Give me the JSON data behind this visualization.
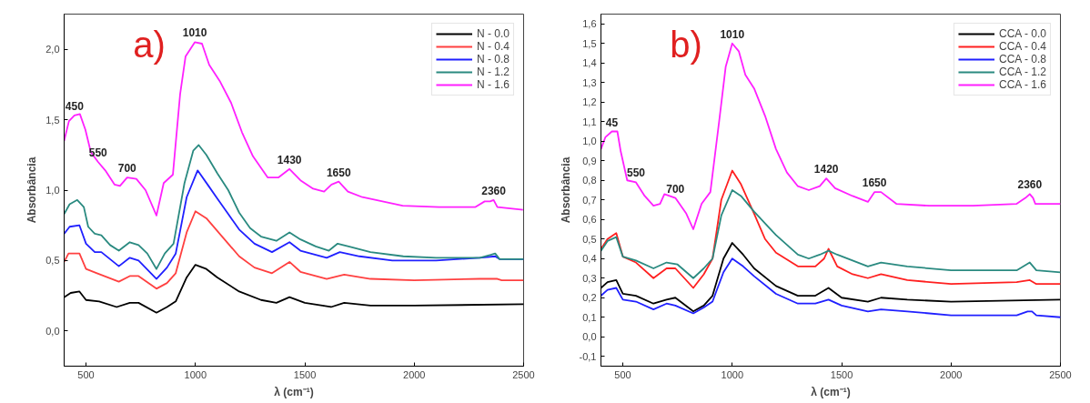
{
  "chart_data": [
    {
      "type": "line",
      "xlabel": "λ (cm⁻¹)",
      "ylabel": "Absorbância",
      "xlim": [
        400,
        2500
      ],
      "ylim": [
        -0.25,
        2.25
      ],
      "xticks": [
        500,
        1000,
        1500,
        2000,
        2500
      ],
      "yticks": [
        {
          "value": 0,
          "label": "0,0"
        },
        {
          "value": 0.5,
          "label": "0,5"
        },
        {
          "value": 1,
          "label": "1,0"
        },
        {
          "value": 1.5,
          "label": "1,5"
        },
        {
          "value": 2,
          "label": "2,0"
        }
      ],
      "grid": false,
      "legend": "top right",
      "marker": "none",
      "line_style": "solid",
      "annotations": [
        "a)",
        {
          "text": "450",
          "x": 447,
          "y": 1.53
        },
        {
          "text": "550",
          "x": 555,
          "y": 1.2
        },
        {
          "text": "700",
          "x": 688,
          "y": 1.09
        },
        {
          "text": "1010",
          "x": 997,
          "y": 2.05
        },
        {
          "text": "1430",
          "x": 1430,
          "y": 1.15
        },
        {
          "text": "1650",
          "x": 1655,
          "y": 1.06
        },
        {
          "text": "2360",
          "x": 2363,
          "y": 0.93
        }
      ],
      "series": [
        {
          "name": "N - 0.0",
          "color": "#000000",
          "x": [
            400,
            430,
            470,
            500,
            560,
            640,
            700,
            740,
            822,
            870,
            910,
            960,
            1000,
            1050,
            1100,
            1200,
            1300,
            1370,
            1430,
            1500,
            1620,
            1680,
            1800,
            2000,
            2500
          ],
          "values": [
            0.24,
            0.27,
            0.28,
            0.22,
            0.21,
            0.17,
            0.2,
            0.2,
            0.13,
            0.17,
            0.21,
            0.38,
            0.47,
            0.44,
            0.38,
            0.28,
            0.22,
            0.2,
            0.24,
            0.2,
            0.17,
            0.2,
            0.18,
            0.18,
            0.19
          ]
        },
        {
          "name": "N - 0.4",
          "color": "#ff4040",
          "x": [
            400,
            420,
            470,
            500,
            550,
            650,
            700,
            740,
            822,
            870,
            910,
            960,
            1000,
            1050,
            1100,
            1150,
            1200,
            1270,
            1350,
            1430,
            1480,
            1600,
            1680,
            1800,
            2000,
            2300,
            2380,
            2400,
            2500
          ],
          "values": [
            0.49,
            0.55,
            0.55,
            0.44,
            0.41,
            0.35,
            0.39,
            0.39,
            0.3,
            0.34,
            0.41,
            0.7,
            0.85,
            0.8,
            0.71,
            0.62,
            0.53,
            0.45,
            0.41,
            0.49,
            0.42,
            0.37,
            0.4,
            0.37,
            0.36,
            0.37,
            0.37,
            0.36,
            0.36
          ]
        },
        {
          "name": "N - 0.8",
          "color": "#2020ff",
          "x": [
            400,
            425,
            470,
            500,
            540,
            570,
            650,
            700,
            740,
            822,
            870,
            910,
            960,
            1010,
            1060,
            1100,
            1150,
            1200,
            1270,
            1350,
            1430,
            1480,
            1600,
            1660,
            1750,
            1900,
            2100,
            2300,
            2370,
            2390,
            2500
          ],
          "values": [
            0.69,
            0.74,
            0.75,
            0.62,
            0.56,
            0.56,
            0.46,
            0.52,
            0.5,
            0.37,
            0.45,
            0.55,
            0.95,
            1.14,
            1.03,
            0.94,
            0.83,
            0.72,
            0.62,
            0.56,
            0.63,
            0.57,
            0.52,
            0.56,
            0.53,
            0.5,
            0.5,
            0.52,
            0.53,
            0.51,
            0.51
          ]
        },
        {
          "name": "N - 1.2",
          "color": "#2a8a80",
          "x": [
            400,
            425,
            460,
            490,
            510,
            540,
            570,
            610,
            650,
            700,
            740,
            780,
            822,
            860,
            900,
            950,
            990,
            1015,
            1050,
            1100,
            1150,
            1200,
            1250,
            1300,
            1370,
            1430,
            1480,
            1550,
            1610,
            1650,
            1700,
            1800,
            1950,
            2100,
            2300,
            2350,
            2370,
            2390,
            2500
          ],
          "values": [
            0.83,
            0.9,
            0.93,
            0.88,
            0.74,
            0.69,
            0.68,
            0.61,
            0.57,
            0.63,
            0.61,
            0.55,
            0.44,
            0.55,
            0.62,
            1.05,
            1.28,
            1.32,
            1.25,
            1.12,
            1.0,
            0.84,
            0.73,
            0.67,
            0.64,
            0.7,
            0.65,
            0.6,
            0.57,
            0.62,
            0.6,
            0.56,
            0.53,
            0.52,
            0.52,
            0.54,
            0.55,
            0.51,
            0.51
          ]
        },
        {
          "name": "N - 1.6",
          "color": "#ff20ff",
          "x": [
            400,
            422,
            447,
            472,
            497,
            522,
            555,
            588,
            630,
            655,
            688,
            730,
            772,
            822,
            855,
            897,
            930,
            955,
            997,
            1030,
            1063,
            1113,
            1163,
            1213,
            1263,
            1330,
            1380,
            1430,
            1480,
            1538,
            1588,
            1622,
            1655,
            1697,
            1763,
            1947,
            2113,
            2280,
            2322,
            2347,
            2363,
            2380,
            2497
          ],
          "values": [
            1.35,
            1.49,
            1.53,
            1.54,
            1.43,
            1.27,
            1.2,
            1.14,
            1.04,
            1.03,
            1.09,
            1.08,
            1.0,
            0.82,
            1.05,
            1.11,
            1.68,
            1.95,
            2.05,
            2.04,
            1.89,
            1.77,
            1.62,
            1.41,
            1.24,
            1.09,
            1.09,
            1.15,
            1.07,
            1.01,
            0.99,
            1.04,
            1.06,
            0.99,
            0.95,
            0.89,
            0.88,
            0.88,
            0.92,
            0.92,
            0.93,
            0.88,
            0.86
          ]
        }
      ]
    },
    {
      "type": "line",
      "xlabel": "λ (cm⁻¹)",
      "ylabel": "Absorbância",
      "xlim": [
        400,
        2500
      ],
      "ylim": [
        -0.15,
        1.65
      ],
      "xticks": [
        500,
        1000,
        1500,
        2000,
        2500
      ],
      "yticks": [
        {
          "value": -0.1,
          "label": "-0,1"
        },
        {
          "value": 0,
          "label": "0,0"
        },
        {
          "value": 0.1,
          "label": "0,1"
        },
        {
          "value": 0.2,
          "label": "0,2"
        },
        {
          "value": 0.3,
          "label": "0,3"
        },
        {
          "value": 0.4,
          "label": "0,4"
        },
        {
          "value": 0.5,
          "label": "0,5"
        },
        {
          "value": 0.6,
          "label": "0,6"
        },
        {
          "value": 0.7,
          "label": "0,7"
        },
        {
          "value": 0.8,
          "label": "0,8"
        },
        {
          "value": 0.9,
          "label": "0,9"
        },
        {
          "value": 1.0,
          "label": "1,0"
        },
        {
          "value": 1.1,
          "label": "1,1"
        },
        {
          "value": 1.2,
          "label": "1,2"
        },
        {
          "value": 1.3,
          "label": "1,3"
        },
        {
          "value": 1.4,
          "label": "1,4"
        },
        {
          "value": 1.5,
          "label": "1,5"
        },
        {
          "value": 1.6,
          "label": "1,6"
        }
      ],
      "grid": false,
      "legend": "top right",
      "marker": "none",
      "line_style": "solid",
      "annotations": [
        "b)",
        {
          "text": "45",
          "x": 450,
          "y": 1.05
        },
        {
          "text": "550",
          "x": 560,
          "y": 0.79
        },
        {
          "text": "700",
          "x": 740,
          "y": 0.71
        },
        {
          "text": "1010",
          "x": 1000,
          "y": 1.5
        },
        {
          "text": "1420",
          "x": 1430,
          "y": 0.81
        },
        {
          "text": "1650",
          "x": 1650,
          "y": 0.74
        },
        {
          "text": "2360",
          "x": 2360,
          "y": 0.73
        }
      ],
      "series": [
        {
          "name": "CCA - 0.0",
          "color": "#000000",
          "x": [
            400,
            430,
            470,
            500,
            560,
            640,
            700,
            740,
            822,
            870,
            910,
            960,
            1000,
            1050,
            1100,
            1200,
            1300,
            1380,
            1440,
            1500,
            1620,
            1680,
            1800,
            2000,
            2500
          ],
          "values": [
            0.25,
            0.28,
            0.29,
            0.22,
            0.21,
            0.17,
            0.19,
            0.2,
            0.13,
            0.16,
            0.21,
            0.4,
            0.48,
            0.42,
            0.35,
            0.26,
            0.21,
            0.21,
            0.25,
            0.2,
            0.18,
            0.2,
            0.19,
            0.18,
            0.19
          ]
        },
        {
          "name": "CCA - 0.4",
          "color": "#ff2020",
          "x": [
            400,
            430,
            470,
            500,
            560,
            640,
            700,
            740,
            822,
            870,
            910,
            950,
            1000,
            1040,
            1100,
            1150,
            1200,
            1300,
            1380,
            1420,
            1440,
            1480,
            1550,
            1620,
            1680,
            1800,
            2000,
            2300,
            2360,
            2390,
            2500
          ],
          "values": [
            0.45,
            0.5,
            0.53,
            0.41,
            0.38,
            0.3,
            0.35,
            0.35,
            0.25,
            0.32,
            0.4,
            0.7,
            0.85,
            0.78,
            0.63,
            0.5,
            0.43,
            0.36,
            0.36,
            0.4,
            0.45,
            0.36,
            0.32,
            0.3,
            0.32,
            0.29,
            0.27,
            0.28,
            0.29,
            0.27,
            0.27
          ]
        },
        {
          "name": "CCA - 0.8",
          "color": "#2020ff",
          "x": [
            400,
            430,
            470,
            500,
            560,
            640,
            700,
            740,
            822,
            870,
            910,
            960,
            1000,
            1050,
            1100,
            1200,
            1300,
            1380,
            1440,
            1500,
            1620,
            1680,
            1800,
            2000,
            2300,
            2350,
            2370,
            2390,
            2500
          ],
          "values": [
            0.21,
            0.24,
            0.25,
            0.19,
            0.18,
            0.14,
            0.17,
            0.16,
            0.12,
            0.15,
            0.18,
            0.33,
            0.4,
            0.36,
            0.31,
            0.22,
            0.17,
            0.17,
            0.19,
            0.16,
            0.13,
            0.14,
            0.13,
            0.11,
            0.11,
            0.13,
            0.13,
            0.11,
            0.1
          ]
        },
        {
          "name": "CCA - 1.2",
          "color": "#2a8a80",
          "x": [
            400,
            430,
            470,
            500,
            560,
            640,
            700,
            750,
            822,
            870,
            910,
            950,
            1000,
            1040,
            1100,
            1200,
            1300,
            1350,
            1400,
            1440,
            1480,
            1550,
            1620,
            1680,
            1800,
            2000,
            2300,
            2360,
            2390,
            2500
          ],
          "values": [
            0.44,
            0.49,
            0.51,
            0.41,
            0.39,
            0.35,
            0.38,
            0.37,
            0.3,
            0.35,
            0.4,
            0.62,
            0.75,
            0.72,
            0.64,
            0.52,
            0.42,
            0.4,
            0.42,
            0.44,
            0.42,
            0.39,
            0.36,
            0.38,
            0.36,
            0.34,
            0.34,
            0.38,
            0.34,
            0.33
          ]
        },
        {
          "name": "CCA - 1.6",
          "color": "#ff20ff",
          "x": [
            400,
            420,
            450,
            475,
            490,
            520,
            560,
            600,
            640,
            670,
            690,
            740,
            790,
            822,
            860,
            900,
            940,
            970,
            1000,
            1030,
            1060,
            1100,
            1150,
            1200,
            1250,
            1300,
            1350,
            1400,
            1430,
            1470,
            1550,
            1620,
            1650,
            1680,
            1750,
            1900,
            2100,
            2300,
            2340,
            2360,
            2375,
            2385,
            2500
          ],
          "values": [
            0.96,
            1.02,
            1.05,
            1.05,
            0.95,
            0.8,
            0.79,
            0.72,
            0.67,
            0.68,
            0.73,
            0.71,
            0.63,
            0.55,
            0.68,
            0.74,
            1.1,
            1.38,
            1.5,
            1.46,
            1.34,
            1.27,
            1.13,
            0.96,
            0.84,
            0.77,
            0.75,
            0.77,
            0.81,
            0.76,
            0.72,
            0.69,
            0.74,
            0.74,
            0.68,
            0.67,
            0.67,
            0.68,
            0.71,
            0.73,
            0.71,
            0.68,
            0.68
          ]
        }
      ]
    }
  ]
}
